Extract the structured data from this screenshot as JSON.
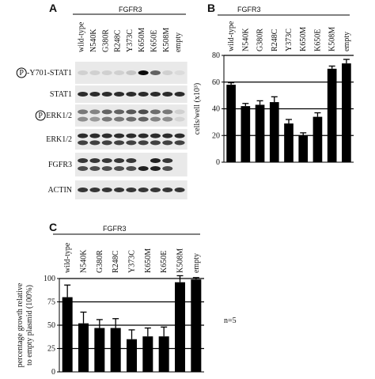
{
  "blot": {
    "panel": "A",
    "title": "FGFR3",
    "phospho_mark": "P",
    "lanes": [
      "wild-type",
      "N540K",
      "G380R",
      "R248C",
      "Y373C",
      "K650M",
      "K650E",
      "K508M",
      "empty"
    ],
    "rows": [
      {
        "label": "-Y701-STAT1",
        "phospho": true
      },
      {
        "label": "STAT1",
        "phospho": false
      },
      {
        "label": "ERK1/2",
        "phospho": true
      },
      {
        "label": "ERK1/2",
        "phospho": false
      },
      {
        "label": "FGFR3",
        "phospho": false
      },
      {
        "label": "ACTIN",
        "phospho": false
      }
    ]
  },
  "chart_data": [
    {
      "type": "bar",
      "panel": "B",
      "title": "FGFR3",
      "categories": [
        "wild-type",
        "N540K",
        "G380R",
        "R248C",
        "Y373C",
        "K650M",
        "K650E",
        "K508M",
        "empty"
      ],
      "values": [
        58,
        42,
        43,
        45,
        29,
        20,
        34,
        70,
        74
      ],
      "errors": [
        1.5,
        2,
        3,
        4,
        3,
        2,
        3,
        2,
        3
      ],
      "ylabel": "cells/well (x10³)",
      "ylim": [
        0,
        80
      ],
      "yticks": [
        0,
        20,
        40,
        60,
        80
      ],
      "grid": true,
      "color": "#000000"
    },
    {
      "type": "bar",
      "panel": "C",
      "title": "FGFR3",
      "categories": [
        "wild-type",
        "N540K",
        "G380R",
        "R248C",
        "Y373C",
        "K650M",
        "K650E",
        "K508M",
        "empty"
      ],
      "values": [
        80,
        52,
        47,
        47,
        35,
        38,
        38,
        96,
        99
      ],
      "errors": [
        13,
        12,
        9,
        10,
        10,
        9,
        10,
        7,
        2
      ],
      "ylabel": [
        "percentage growth relative",
        "to empty plasmid (100%)"
      ],
      "ylim": [
        0,
        100
      ],
      "yticks": [
        0,
        25,
        50,
        75,
        100
      ],
      "grid": true,
      "color": "#000000",
      "annotation": "n=5"
    }
  ]
}
